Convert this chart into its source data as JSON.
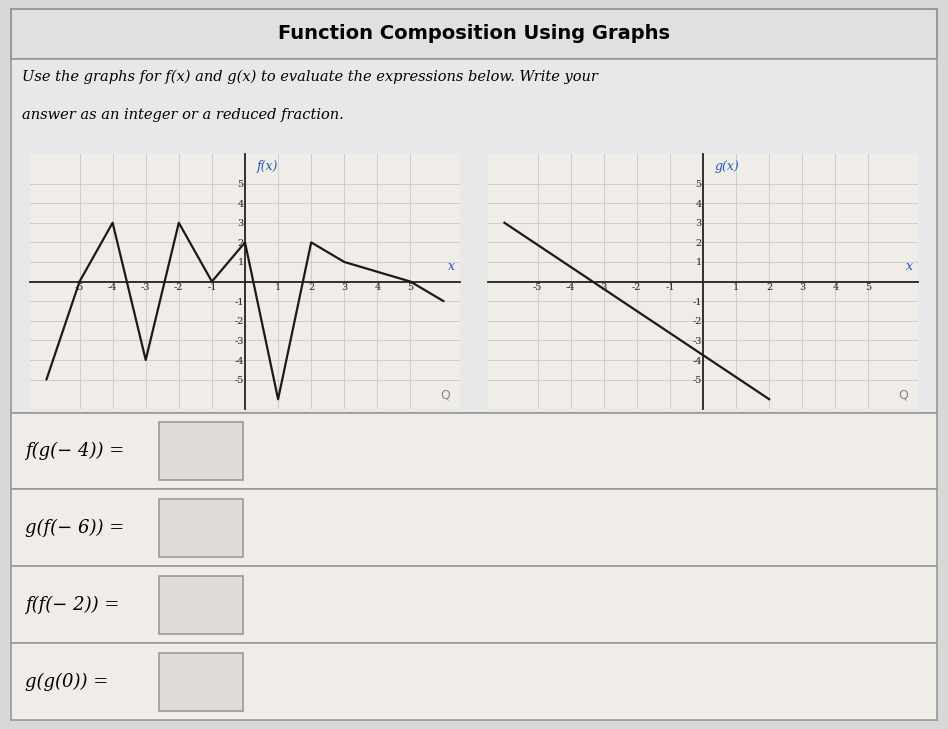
{
  "title": "Function Composition Using Graphs",
  "subtitle_line1": "Use the graphs for f(x) and g(x) to evaluate the expressions below. Write your",
  "subtitle_line2": "answer as an integer or a reduced fraction.",
  "f_points": [
    [
      -6,
      -5
    ],
    [
      -5,
      0
    ],
    [
      -4,
      3
    ],
    [
      -3,
      -4
    ],
    [
      -2,
      3
    ],
    [
      -1,
      0
    ],
    [
      0,
      2
    ],
    [
      1,
      -6
    ],
    [
      2,
      2
    ],
    [
      3,
      1
    ],
    [
      5,
      0
    ],
    [
      6,
      -1
    ]
  ],
  "g_points": [
    [
      -6,
      3
    ],
    [
      2,
      -6
    ]
  ],
  "f_xlim": [
    -6.5,
    6.5
  ],
  "f_ylim": [
    -6.5,
    6.5
  ],
  "g_xlim": [
    -6.5,
    6.5
  ],
  "g_ylim": [
    -6.5,
    6.5
  ],
  "f_label": "f(x)",
  "g_label": "g(x)",
  "expressions": [
    "f(g(− 4)) =",
    "g(f(− 6)) =",
    "f(f(− 2)) =",
    "g(g(0)) ="
  ],
  "line_color": "#1a1a1a",
  "grid_color": "#c8c8c8",
  "axis_color": "#222222",
  "label_color": "#2255bb",
  "outer_bg": "#d8d8d8",
  "inner_bg": "#e8e8e8",
  "graph_bg": "#f0ede8",
  "expr_bg": "#f0ede8",
  "title_bg": "#e0e0e0",
  "box_fill": "#e0ddd8"
}
